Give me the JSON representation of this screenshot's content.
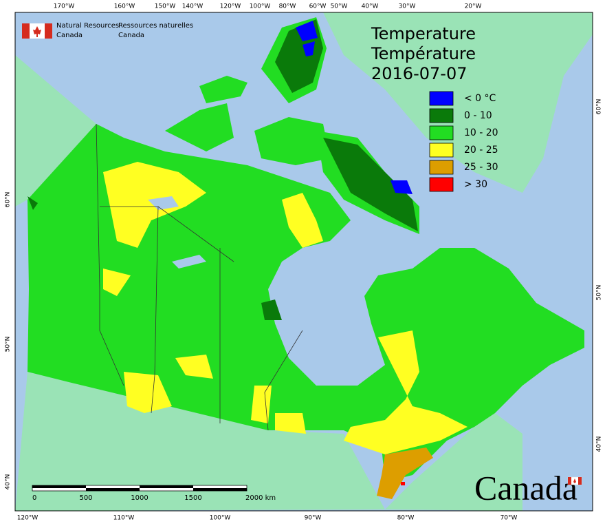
{
  "agency_en": [
    "Natural Resources",
    "Canada"
  ],
  "agency_fr": [
    "Ressources naturelles",
    "Canada"
  ],
  "title": [
    "Temperature",
    "Température"
  ],
  "date": "2016-07-07",
  "legend": [
    {
      "label": "< 0 °C",
      "color": "#0000ff"
    },
    {
      "label": "0 - 10",
      "color": "#0a7a0a"
    },
    {
      "label": "10 - 20",
      "color": "#22dd22"
    },
    {
      "label": "20 - 25",
      "color": "#ffff22"
    },
    {
      "label": "25 - 30",
      "color": "#dd9e00"
    },
    {
      "label": "> 30",
      "color": "#ff0000"
    }
  ],
  "graticule": {
    "top": [
      "170°W",
      "160°W",
      "150°W",
      "140°W",
      "120°W",
      "100°W",
      "80°W",
      "60°W",
      "50°W",
      "40°W",
      "30°W",
      "20°W"
    ],
    "bottom": [
      "120°W",
      "110°W",
      "100°W",
      "90°W",
      "80°W",
      "70°W"
    ],
    "left": [
      "60°N",
      "50°N",
      "40°N"
    ],
    "right": [
      "60°N",
      "50°N",
      "40°N"
    ]
  },
  "scale_bar": [
    "0",
    "500",
    "1000",
    "1500",
    "2000 km"
  ],
  "wordmark": "Canada"
}
